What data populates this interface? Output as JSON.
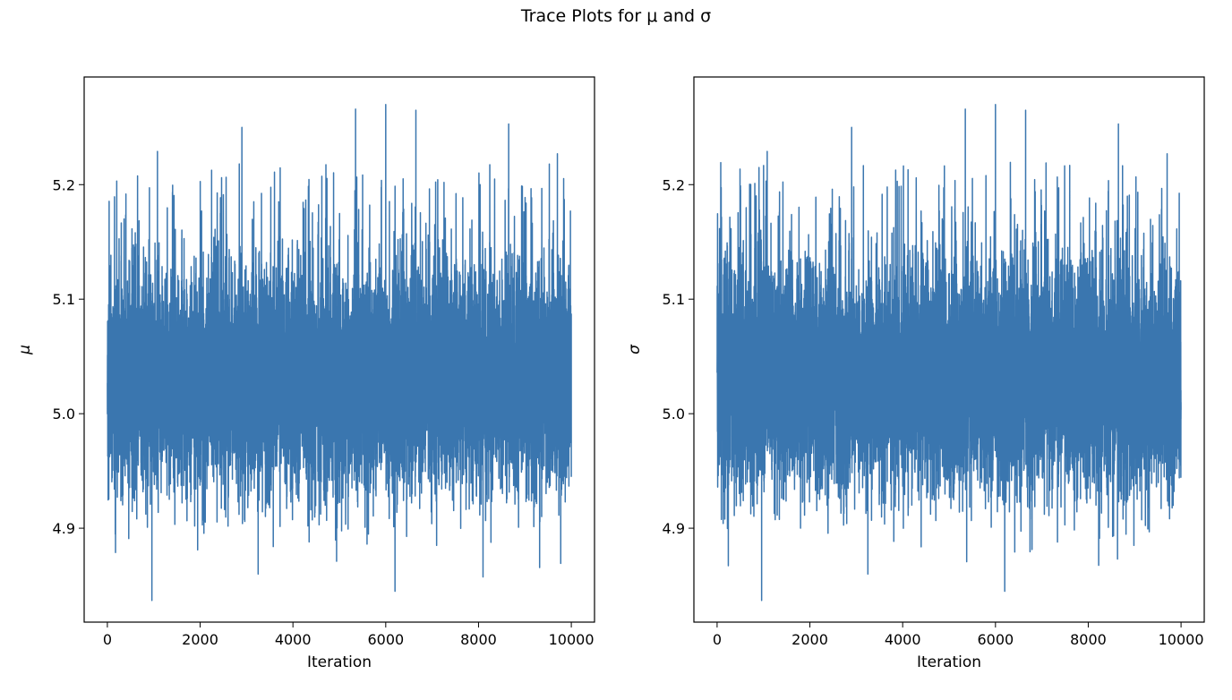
{
  "figure": {
    "suptitle": "Trace Plots for μ and σ"
  },
  "colors": {
    "line": "#3a76af",
    "axes": "#000000",
    "background": "#ffffff"
  },
  "chart_data": [
    {
      "type": "line",
      "title": "",
      "xlabel": "Iteration",
      "ylabel": "μ",
      "xlim": [
        -500,
        10500
      ],
      "ylim": [
        4.818,
        5.294
      ],
      "xticks": [
        0,
        2000,
        4000,
        6000,
        8000,
        10000
      ],
      "xtick_labels": [
        "0",
        "2000",
        "4000",
        "6000",
        "8000",
        "10000"
      ],
      "yticks": [
        4.9,
        5.0,
        5.1,
        5.2
      ],
      "ytick_labels": [
        "4.9",
        "5.0",
        "5.1",
        "5.2"
      ],
      "grid": false,
      "series": [
        {
          "n_points": 10001,
          "x": [
            0,
            1000,
            2000,
            3000,
            4000,
            5000,
            6000,
            7000,
            8000,
            9000,
            10000
          ],
          "center": 5.03,
          "typical_band": [
            4.95,
            5.15
          ],
          "peaks": [
            {
              "x": 960,
              "y": 4.837
            },
            {
              "x": 1080,
              "y": 5.229
            },
            {
              "x": 2900,
              "y": 5.25
            },
            {
              "x": 3250,
              "y": 4.86
            },
            {
              "x": 5350,
              "y": 5.266
            },
            {
              "x": 6000,
              "y": 5.27
            },
            {
              "x": 6200,
              "y": 4.845
            },
            {
              "x": 6650,
              "y": 5.265
            },
            {
              "x": 8650,
              "y": 5.253
            },
            {
              "x": 9700,
              "y": 5.227
            }
          ]
        }
      ]
    },
    {
      "type": "line",
      "title": "",
      "xlabel": "Iteration",
      "ylabel": "σ",
      "xlim": [
        -500,
        10500
      ],
      "ylim": [
        4.818,
        5.294
      ],
      "xticks": [
        0,
        2000,
        4000,
        6000,
        8000,
        10000
      ],
      "xtick_labels": [
        "0",
        "2000",
        "4000",
        "6000",
        "8000",
        "10000"
      ],
      "yticks": [
        4.9,
        5.0,
        5.1,
        5.2
      ],
      "ytick_labels": [
        "4.9",
        "5.0",
        "5.1",
        "5.2"
      ],
      "grid": false,
      "series": [
        {
          "n_points": 10001,
          "x": [
            0,
            1000,
            2000,
            3000,
            4000,
            5000,
            6000,
            7000,
            8000,
            9000,
            10000
          ],
          "center": 5.03,
          "typical_band": [
            4.95,
            5.15
          ],
          "peaks": [
            {
              "x": 960,
              "y": 4.837
            },
            {
              "x": 1080,
              "y": 5.229
            },
            {
              "x": 2900,
              "y": 5.25
            },
            {
              "x": 3250,
              "y": 4.86
            },
            {
              "x": 5350,
              "y": 5.266
            },
            {
              "x": 6000,
              "y": 5.27
            },
            {
              "x": 6200,
              "y": 4.845
            },
            {
              "x": 6650,
              "y": 5.265
            },
            {
              "x": 8650,
              "y": 5.253
            },
            {
              "x": 9700,
              "y": 5.227
            }
          ]
        }
      ]
    }
  ]
}
